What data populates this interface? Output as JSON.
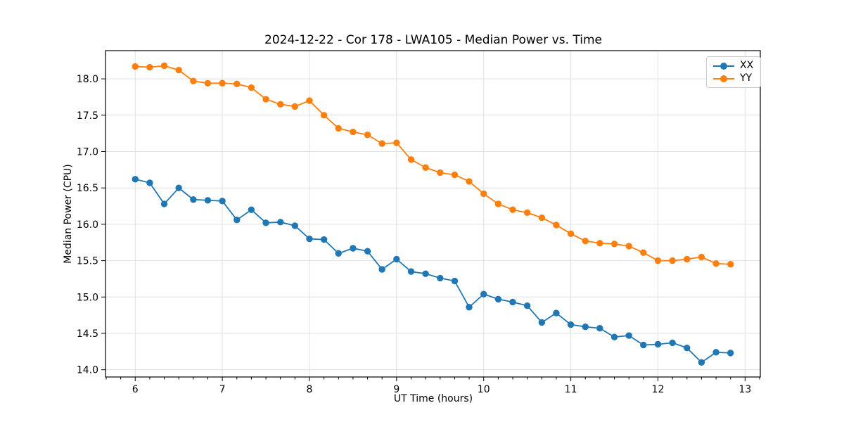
{
  "figure": {
    "title": "2024-12-22 - Cor 178 - LWA105 - Median Power vs. Time"
  },
  "chart_data": {
    "type": "line",
    "title": "2024-12-22 - Cor 178 - LWA105 - Median Power vs. Time",
    "xlabel": "UT Time (hours)",
    "ylabel": "Median Power (CPU)",
    "xlim": [
      5.659,
      13.175
    ],
    "ylim": [
      13.9,
      18.388
    ],
    "xticks": [
      6,
      7,
      8,
      9,
      10,
      11,
      12,
      13
    ],
    "yticks": [
      14.0,
      14.5,
      15.0,
      15.5,
      16.0,
      16.5,
      17.0,
      17.5,
      18.0
    ],
    "x_minor_tick_interval": 0.16667,
    "grid": true,
    "grid_color": "#e0e0e0",
    "legend_position": "upper right",
    "x": [
      6.0,
      6.167,
      6.333,
      6.5,
      6.667,
      6.833,
      7.0,
      7.167,
      7.333,
      7.5,
      7.667,
      7.833,
      8.0,
      8.167,
      8.333,
      8.5,
      8.667,
      8.833,
      9.0,
      9.167,
      9.333,
      9.5,
      9.667,
      9.833,
      10.0,
      10.167,
      10.333,
      10.5,
      10.667,
      10.833,
      11.0,
      11.167,
      11.333,
      11.5,
      11.667,
      11.833,
      12.0,
      12.167,
      12.333,
      12.5,
      12.667,
      12.833
    ],
    "series": [
      {
        "name": "XX",
        "color": "#1f77b4",
        "marker": "circle",
        "values": [
          16.62,
          16.57,
          16.28,
          16.5,
          16.34,
          16.33,
          16.32,
          16.06,
          16.2,
          16.02,
          16.03,
          15.98,
          15.8,
          15.79,
          15.6,
          15.67,
          15.63,
          15.38,
          15.52,
          15.35,
          15.32,
          15.26,
          15.22,
          14.86,
          15.04,
          14.97,
          14.93,
          14.88,
          14.65,
          14.78,
          14.62,
          14.59,
          14.57,
          14.45,
          14.47,
          14.34,
          14.35,
          14.37,
          14.3,
          14.1,
          14.24,
          14.23
        ]
      },
      {
        "name": "YY",
        "color": "#ff7f0e",
        "marker": "circle",
        "values": [
          18.17,
          18.16,
          18.18,
          18.12,
          17.97,
          17.94,
          17.94,
          17.93,
          17.88,
          17.72,
          17.65,
          17.62,
          17.7,
          17.5,
          17.32,
          17.27,
          17.23,
          17.11,
          17.12,
          16.89,
          16.78,
          16.71,
          16.68,
          16.59,
          16.42,
          16.28,
          16.2,
          16.16,
          16.09,
          15.99,
          15.87,
          15.77,
          15.74,
          15.73,
          15.7,
          15.61,
          15.5,
          15.5,
          15.52,
          15.55,
          15.46,
          15.45
        ]
      }
    ]
  }
}
